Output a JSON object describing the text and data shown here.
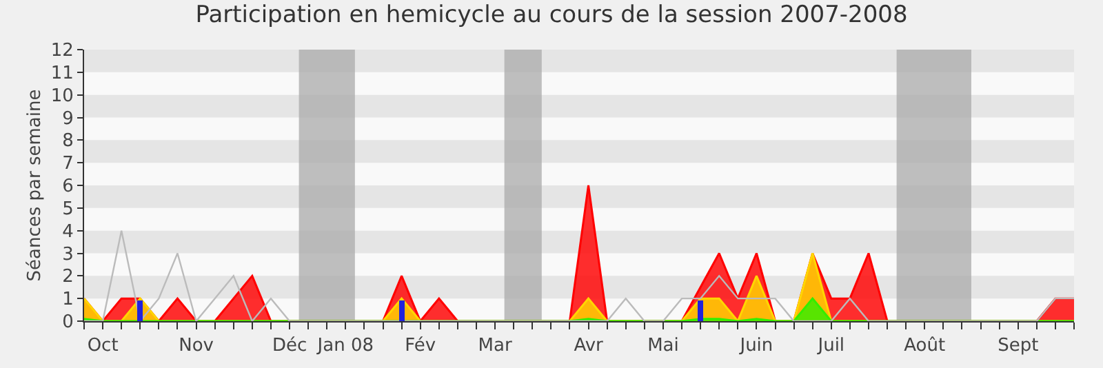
{
  "chart_data": {
    "type": "area",
    "title": "Participation en hemicycle au cours de la session 2007-2008",
    "ylabel": "Séances par semaine",
    "categories": [
      null,
      "Oct",
      null,
      null,
      null,
      null,
      "Nov",
      null,
      null,
      null,
      null,
      "Déc",
      null,
      null,
      "Jan 08",
      null,
      null,
      null,
      "Fév",
      null,
      null,
      null,
      "Mar",
      null,
      null,
      null,
      null,
      "Avr",
      null,
      null,
      null,
      "Mai",
      null,
      null,
      null,
      null,
      "Juin",
      null,
      null,
      null,
      "Juil",
      null,
      null,
      null,
      null,
      "Août",
      null,
      null,
      null,
      null,
      "Sept",
      null,
      null,
      null
    ],
    "series": [
      {
        "color": "#ff0000",
        "values": [
          1,
          0,
          1,
          1,
          0,
          1,
          0,
          0,
          1,
          2,
          0,
          0,
          0,
          0,
          0,
          0,
          0,
          2,
          0,
          1,
          0,
          0,
          0,
          0,
          0,
          0,
          0,
          6,
          0,
          0,
          0,
          0,
          0,
          1.5,
          3,
          1,
          3,
          0,
          0,
          3,
          1,
          1,
          3,
          0,
          0,
          0,
          0,
          0,
          0,
          0,
          0,
          0,
          1,
          1
        ]
      },
      {
        "color": "#ffd700",
        "values": [
          1,
          0,
          0,
          1,
          0,
          0,
          0,
          0,
          0,
          0,
          0,
          0,
          0,
          0,
          0,
          0,
          0,
          1,
          0,
          0,
          0,
          0,
          0,
          0,
          0,
          0,
          0,
          1,
          0,
          0,
          0,
          0,
          0,
          1,
          1,
          0,
          2,
          0,
          0,
          3,
          0,
          0,
          0,
          0,
          0,
          0,
          0,
          0,
          0,
          0,
          0,
          0,
          0,
          0
        ]
      },
      {
        "color": "#33ee00",
        "values": [
          0.1,
          0,
          0,
          0,
          0,
          0,
          0,
          0,
          0,
          0,
          0,
          0,
          0,
          0,
          0,
          0,
          0,
          0,
          0,
          0,
          0,
          0,
          0,
          0,
          0,
          0,
          0,
          0.1,
          0,
          0,
          0,
          0,
          0,
          0.1,
          0.1,
          0,
          0.1,
          0,
          0,
          1,
          0,
          0,
          0,
          0,
          0,
          0,
          0,
          0,
          0,
          0,
          0,
          0,
          0,
          0
        ]
      },
      {
        "type": "bar",
        "color": "#2222dd",
        "values": [
          null,
          null,
          null,
          0.9,
          null,
          null,
          null,
          null,
          null,
          null,
          null,
          null,
          null,
          null,
          null,
          null,
          null,
          0.9,
          null,
          null,
          null,
          null,
          null,
          null,
          null,
          null,
          null,
          null,
          null,
          null,
          null,
          null,
          null,
          0.9,
          null,
          null,
          null,
          null,
          null,
          null,
          null,
          null,
          null,
          null,
          null,
          null,
          null,
          null,
          null,
          null,
          null,
          null,
          null,
          null
        ]
      },
      {
        "type": "line",
        "color": "#bbbbbb",
        "values": [
          0,
          0,
          4,
          0,
          1,
          3,
          0,
          1,
          2,
          0,
          1,
          0,
          0,
          0,
          0,
          0,
          0,
          0,
          0,
          0,
          0,
          0,
          0,
          0,
          0,
          0,
          0,
          0,
          0,
          1,
          0,
          0,
          1,
          1,
          2,
          1,
          1,
          1,
          0,
          0,
          0,
          1,
          0,
          0,
          0,
          0,
          0,
          0,
          0,
          0,
          0,
          0,
          1,
          1
        ]
      }
    ],
    "ylim": [
      0,
      12
    ],
    "yticks": [
      0,
      1,
      2,
      3,
      4,
      5,
      6,
      7,
      8,
      9,
      10,
      11,
      12
    ],
    "legend": false
  }
}
